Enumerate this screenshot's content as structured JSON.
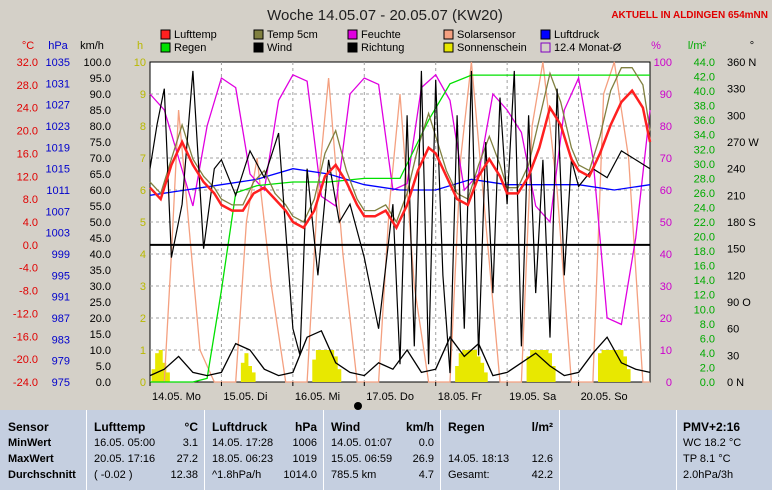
{
  "title": "Woche 14.05.07 - 20.05.07 (KW20)",
  "live_label": "AKTUELL IN ALDINGEN 654mNN",
  "axes": {
    "celsius": {
      "unit": "°C",
      "ticks": [
        "32.0",
        "28.0",
        "24.0",
        "20.0",
        "16.0",
        "12.0",
        "8.0",
        "4.0",
        "0.0",
        "-4.0",
        "-8.0",
        "-12.0",
        "-16.0",
        "-20.0",
        "-24.0"
      ],
      "color": "#e00000"
    },
    "hpa": {
      "unit": "hPa",
      "ticks": [
        "1035",
        "1031",
        "1027",
        "1023",
        "1019",
        "1015",
        "1011",
        "1007",
        "1003",
        "999",
        "995",
        "991",
        "987",
        "983",
        "979",
        "975"
      ],
      "color": "#0000cc"
    },
    "kmh": {
      "unit": "km/h",
      "ticks": [
        "100.0",
        "95.0",
        "90.0",
        "85.0",
        "80.0",
        "75.0",
        "70.0",
        "65.0",
        "60.0",
        "55.0",
        "50.0",
        "45.0",
        "40.0",
        "35.0",
        "30.0",
        "25.0",
        "20.0",
        "15.0",
        "10.0",
        "5.0",
        "0.0"
      ],
      "color": "#000000"
    },
    "hours": {
      "unit": "h",
      "ticks": [
        "10",
        "9",
        "8",
        "7",
        "6",
        "5",
        "4",
        "3",
        "2",
        "1",
        "0"
      ],
      "color": "#b8b800"
    },
    "percent": {
      "unit": "%",
      "ticks": [
        "100",
        "90",
        "80",
        "70",
        "60",
        "50",
        "40",
        "30",
        "20",
        "10",
        "0"
      ],
      "color": "#cc00cc"
    },
    "lm2": {
      "unit": "l/m²",
      "ticks": [
        "44.0",
        "42.0",
        "40.0",
        "38.0",
        "36.0",
        "34.0",
        "32.0",
        "30.0",
        "28.0",
        "26.0",
        "24.0",
        "22.0",
        "20.0",
        "18.0",
        "16.0",
        "14.0",
        "12.0",
        "10.0",
        "8.0",
        "6.0",
        "4.0",
        "2.0",
        "0.0"
      ],
      "color": "#00aa00"
    },
    "degrees": {
      "unit": "°",
      "ticks": [
        "360 N",
        "330",
        "300",
        "270 W",
        "240",
        "210",
        "180 S",
        "150",
        "120",
        "90 O",
        "60",
        "30",
        "0  N"
      ],
      "color": "#000000"
    }
  },
  "legend": [
    {
      "label": "Lufttemp",
      "color": "#ff2020",
      "mark": "box"
    },
    {
      "label": "Temp 5cm",
      "color": "#808040",
      "mark": "box"
    },
    {
      "label": "Feuchte",
      "color": "#e000e0",
      "mark": "box"
    },
    {
      "label": "Solarsensor",
      "color": "#f4a080",
      "mark": "box"
    },
    {
      "label": "Luftdruck",
      "color": "#0000ff",
      "mark": "box"
    },
    {
      "label": "Regen",
      "color": "#00e000",
      "mark": "box"
    },
    {
      "label": "Wind",
      "color": "#000000",
      "mark": "box"
    },
    {
      "label": "Richtung",
      "color": "#000000",
      "mark": "box"
    },
    {
      "label": "Sonnenschein",
      "color": "#e8e800",
      "mark": "box"
    },
    {
      "label": "12.4 Monat-Ø",
      "color": "#8000c0",
      "mark": "outline"
    }
  ],
  "chart_data": {
    "type": "line",
    "x_ticks": [
      "14.05. Mo",
      "15.05. Di",
      "16.05. Mi",
      "17.05. Do",
      "18.05. Fr",
      "19.05. Sa",
      "20.05. So"
    ],
    "xlim_days": [
      0,
      7
    ],
    "series": [
      {
        "name": "Lufttemp",
        "axis": "celsius",
        "color": "#ff2020",
        "x": [
          0,
          0.15,
          0.3,
          0.45,
          0.6,
          0.75,
          0.9,
          1.0,
          1.15,
          1.3,
          1.45,
          1.6,
          1.75,
          1.9,
          2.0,
          2.15,
          2.3,
          2.45,
          2.6,
          2.75,
          2.9,
          3.0,
          3.15,
          3.3,
          3.45,
          3.6,
          3.75,
          3.9,
          4.0,
          4.15,
          4.3,
          4.45,
          4.6,
          4.75,
          4.9,
          5.0,
          5.15,
          5.3,
          5.45,
          5.6,
          5.75,
          5.9,
          6.0,
          6.15,
          6.3,
          6.45,
          6.6,
          6.75,
          6.9,
          7.0
        ],
        "y": [
          10,
          8,
          14,
          18,
          14,
          11,
          9,
          7,
          6,
          6,
          9,
          10,
          8,
          6,
          4,
          3,
          6,
          12,
          14,
          11,
          7,
          5,
          5,
          6,
          3,
          7,
          13,
          17,
          16,
          12,
          8,
          7,
          12,
          15,
          12,
          9,
          9,
          12,
          17,
          24,
          21,
          15,
          13,
          12,
          16,
          21,
          25,
          27,
          24,
          18
        ]
      },
      {
        "name": "Temp 5cm",
        "axis": "celsius",
        "color": "#808040",
        "x": [
          0,
          0.15,
          0.3,
          0.45,
          0.6,
          0.75,
          0.9,
          1.0,
          1.15,
          1.3,
          1.45,
          1.6,
          1.75,
          1.9,
          2.0,
          2.15,
          2.3,
          2.45,
          2.6,
          2.75,
          2.9,
          3.0,
          3.15,
          3.3,
          3.45,
          3.6,
          3.75,
          3.9,
          4.0,
          4.15,
          4.3,
          4.45,
          4.6,
          4.75,
          4.9,
          5.0,
          5.15,
          5.3,
          5.45,
          5.6,
          5.75,
          5.9,
          6.0,
          6.15,
          6.3,
          6.45,
          6.6,
          6.75,
          6.9,
          7.0
        ],
        "y": [
          11,
          9,
          15,
          21,
          15,
          12,
          10,
          8,
          7,
          7,
          11,
          13,
          9,
          7,
          5,
          4,
          8,
          16,
          20,
          13,
          8,
          6,
          6,
          7,
          4,
          9,
          17,
          23,
          19,
          13,
          9,
          8,
          14,
          19,
          14,
          10,
          10,
          14,
          22,
          30,
          25,
          17,
          14,
          13,
          19,
          27,
          31,
          31,
          28,
          20
        ]
      },
      {
        "name": "Feuchte",
        "axis": "percent",
        "color": "#e000e0",
        "x": [
          0,
          0.2,
          0.4,
          0.6,
          0.8,
          1.0,
          1.2,
          1.4,
          1.6,
          1.8,
          2.0,
          2.2,
          2.4,
          2.6,
          2.8,
          3.0,
          3.2,
          3.4,
          3.6,
          3.8,
          4.0,
          4.2,
          4.4,
          4.6,
          4.8,
          5.0,
          5.2,
          5.4,
          5.6,
          5.8,
          6.0,
          6.2,
          6.4,
          6.6,
          6.8,
          7.0
        ],
        "y": [
          90,
          85,
          70,
          55,
          80,
          95,
          92,
          65,
          60,
          88,
          96,
          94,
          58,
          55,
          90,
          95,
          93,
          60,
          62,
          92,
          96,
          88,
          60,
          65,
          90,
          85,
          78,
          55,
          50,
          85,
          95,
          70,
          20,
          18,
          45,
          85
        ]
      },
      {
        "name": "Solarsensor",
        "axis": "percent",
        "color": "#f4a080",
        "x": [
          0,
          0.2,
          0.3,
          0.4,
          0.5,
          0.7,
          0.9,
          1.0,
          1.2,
          1.35,
          1.5,
          1.7,
          1.9,
          2.0,
          2.2,
          2.35,
          2.5,
          2.7,
          2.9,
          3.0,
          3.2,
          3.35,
          3.5,
          3.7,
          3.9,
          4.0,
          4.2,
          4.35,
          4.5,
          4.7,
          4.9,
          5.0,
          5.2,
          5.35,
          5.5,
          5.7,
          5.9,
          6.0,
          6.2,
          6.35,
          6.5,
          6.7,
          6.9,
          7.0
        ],
        "y": [
          0,
          0,
          40,
          85,
          60,
          10,
          0,
          0,
          0,
          50,
          70,
          30,
          0,
          0,
          0,
          60,
          95,
          40,
          0,
          0,
          0,
          55,
          90,
          30,
          0,
          0,
          0,
          70,
          100,
          50,
          0,
          0,
          0,
          80,
          100,
          60,
          0,
          0,
          0,
          90,
          100,
          70,
          0,
          0
        ]
      },
      {
        "name": "Luftdruck",
        "axis": "hpa",
        "color": "#0000ff",
        "x": [
          0,
          0.5,
          1.0,
          1.5,
          2.0,
          2.5,
          3.0,
          3.5,
          4.0,
          4.5,
          5.0,
          5.5,
          6.0,
          6.5,
          7.0
        ],
        "y": [
          1010,
          1011,
          1012,
          1013,
          1015,
          1014,
          1012,
          1011,
          1011,
          1013,
          1012,
          1012,
          1012,
          1011,
          1012
        ]
      },
      {
        "name": "Regen",
        "axis": "lm2",
        "color": "#00e000",
        "x": [
          0,
          0.3,
          0.6,
          0.8,
          1.0,
          1.2,
          1.5,
          2.0,
          2.5,
          3.0,
          3.5,
          3.9,
          4.2,
          4.5,
          5.0,
          5.5,
          6.0,
          6.5,
          7.0
        ],
        "y": [
          0,
          0,
          0,
          0.5,
          12.6,
          26,
          27,
          27.5,
          27.5,
          28,
          28,
          36,
          41,
          42.2,
          42.2,
          42.2,
          42.2,
          42.2,
          42.2
        ]
      },
      {
        "name": "Wind",
        "axis": "kmh",
        "color": "#000000",
        "x": [
          0,
          0.2,
          0.4,
          0.6,
          0.8,
          1.0,
          1.2,
          1.4,
          1.6,
          1.8,
          2.0,
          2.2,
          2.4,
          2.6,
          2.8,
          3.0,
          3.2,
          3.4,
          3.6,
          3.8,
          4.0,
          4.2,
          4.4,
          4.6,
          4.8,
          5.0,
          5.2,
          5.4,
          5.6,
          5.8,
          6.0,
          6.2,
          6.4,
          6.6,
          6.8,
          7.0
        ],
        "y": [
          2,
          4,
          8,
          3,
          2,
          3,
          12,
          10,
          4,
          2,
          3,
          14,
          16,
          6,
          3,
          2,
          6,
          4,
          10,
          3,
          4,
          14,
          8,
          12,
          2,
          3,
          6,
          9,
          5,
          2,
          3,
          9,
          14,
          6,
          4,
          3
        ]
      },
      {
        "name": "Richtung",
        "axis": "degrees",
        "color": "#000000",
        "x": [
          0,
          0.1,
          0.2,
          0.3,
          0.45,
          0.6,
          0.75,
          0.9,
          1.0,
          1.2,
          1.4,
          1.6,
          1.8,
          2.0,
          2.1,
          2.2,
          2.35,
          2.5,
          2.65,
          2.8,
          3.0,
          3.2,
          3.4,
          3.5,
          3.6,
          3.7,
          3.8,
          3.9,
          4.0,
          4.1,
          4.2,
          4.3,
          4.4,
          4.5,
          4.6,
          4.7,
          4.8,
          4.9,
          5.0,
          5.1,
          5.2,
          5.3,
          5.4,
          5.5,
          5.6,
          5.7,
          5.8,
          5.9,
          6.0,
          6.2,
          6.4,
          6.6,
          6.8,
          7.0
        ],
        "y": [
          240,
          290,
          330,
          140,
          200,
          350,
          150,
          240,
          250,
          210,
          260,
          230,
          280,
          60,
          30,
          240,
          120,
          250,
          180,
          200,
          140,
          60,
          200,
          20,
          300,
          40,
          350,
          20,
          340,
          120,
          10,
          300,
          60,
          350,
          30,
          270,
          100,
          320,
          200,
          350,
          40,
          300,
          100,
          250,
          50,
          330,
          120,
          250,
          220,
          240,
          230,
          260,
          250,
          240
        ]
      },
      {
        "name": "Sonnenschein",
        "axis": "hours",
        "color": "#e8e800",
        "type": "bar",
        "x": [
          0.05,
          0.1,
          0.15,
          0.2,
          0.25,
          1.3,
          1.35,
          1.4,
          1.45,
          2.3,
          2.35,
          2.4,
          2.45,
          2.5,
          2.55,
          2.6,
          2.65,
          4.3,
          4.35,
          4.4,
          4.45,
          4.5,
          4.55,
          4.6,
          4.65,
          4.7,
          5.3,
          5.35,
          5.4,
          5.45,
          5.5,
          5.55,
          5.6,
          5.65,
          6.3,
          6.35,
          6.4,
          6.45,
          6.5,
          6.55,
          6.6,
          6.65,
          6.7
        ],
        "y": [
          0.4,
          0.9,
          1.0,
          0.6,
          0.3,
          0.6,
          0.9,
          0.5,
          0.3,
          0.7,
          1.0,
          1.0,
          1.0,
          1.0,
          1.0,
          0.8,
          0.4,
          0.5,
          0.9,
          1.0,
          1.0,
          1.0,
          1.0,
          0.8,
          0.6,
          0.3,
          0.8,
          1.0,
          1.0,
          1.0,
          1.0,
          1.0,
          0.9,
          0.5,
          0.9,
          1.0,
          1.0,
          1.0,
          1.0,
          1.0,
          1.0,
          0.8,
          0.4
        ]
      }
    ],
    "reference_line": {
      "axis": "celsius",
      "y": 0
    },
    "grid": true
  },
  "table": {
    "sensor": {
      "header": "Sensor",
      "rows": [
        "MinWert",
        "MaxWert",
        "Durchschnitt"
      ]
    },
    "lufttemp": {
      "header": "Lufttemp",
      "unit": "°C",
      "rows": [
        [
          "16.05.  05:00",
          "3.1"
        ],
        [
          "20.05.  17:16",
          "27.2"
        ],
        [
          "( -0.02 )",
          "12.38"
        ]
      ]
    },
    "luftdruck": {
      "header": "Luftdruck",
      "unit": "hPa",
      "rows": [
        [
          "14.05.  17:28",
          "1006"
        ],
        [
          "18.05.  06:23",
          "1019"
        ],
        [
          "^1.8hPa/h",
          "1014.0"
        ]
      ]
    },
    "wind": {
      "header": "Wind",
      "unit": "km/h",
      "rows": [
        [
          "14.05.  01:07",
          "0.0"
        ],
        [
          "15.05.  06:59",
          "26.9"
        ],
        [
          "785.5 km",
          "4.7"
        ]
      ]
    },
    "regen": {
      "header": "Regen",
      "unit": "l/m²",
      "rows": [
        [
          "",
          ""
        ],
        [
          "14.05.  18:13",
          "12.6"
        ],
        [
          "Gesamt:",
          "42.2"
        ]
      ]
    },
    "pmv": {
      "header": "PMV+2:16",
      "rows": [
        "WC 18.2 °C",
        "TP 8.1 °C",
        "2.0hPa/3h"
      ]
    }
  }
}
